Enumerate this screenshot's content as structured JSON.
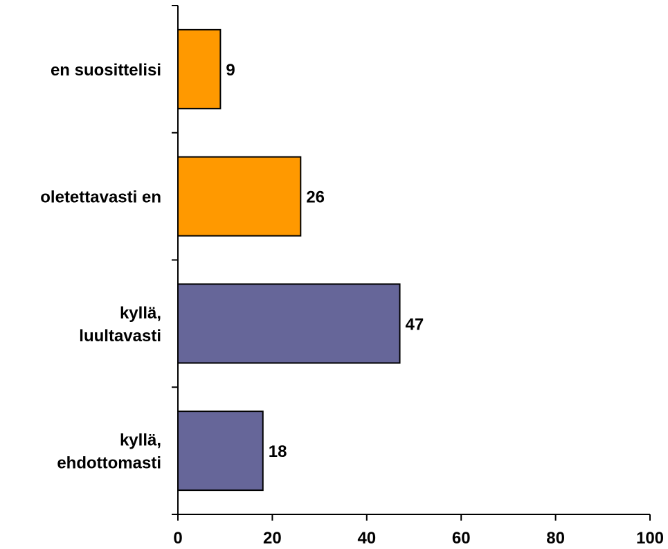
{
  "chart_data": {
    "type": "bar",
    "orientation": "horizontal",
    "categories": [
      [
        "en suosittelisi"
      ],
      [
        "oletettavasti en"
      ],
      [
        "kyllä,",
        "luultavasti"
      ],
      [
        "kyllä,",
        "ehdottomasti"
      ]
    ],
    "values": [
      9,
      26,
      47,
      18
    ],
    "data_labels": [
      "9",
      "26",
      "47",
      "18"
    ],
    "bar_colors": [
      "#FF9900",
      "#FF9900",
      "#666699",
      "#666699"
    ],
    "xlim": [
      0,
      100
    ],
    "xticks": [
      0,
      20,
      40,
      60,
      80,
      100
    ],
    "xtick_labels": [
      "0",
      "20",
      "40",
      "60",
      "80",
      "100"
    ],
    "grid": false,
    "legend": "none",
    "title": "",
    "xlabel": "",
    "ylabel": ""
  }
}
